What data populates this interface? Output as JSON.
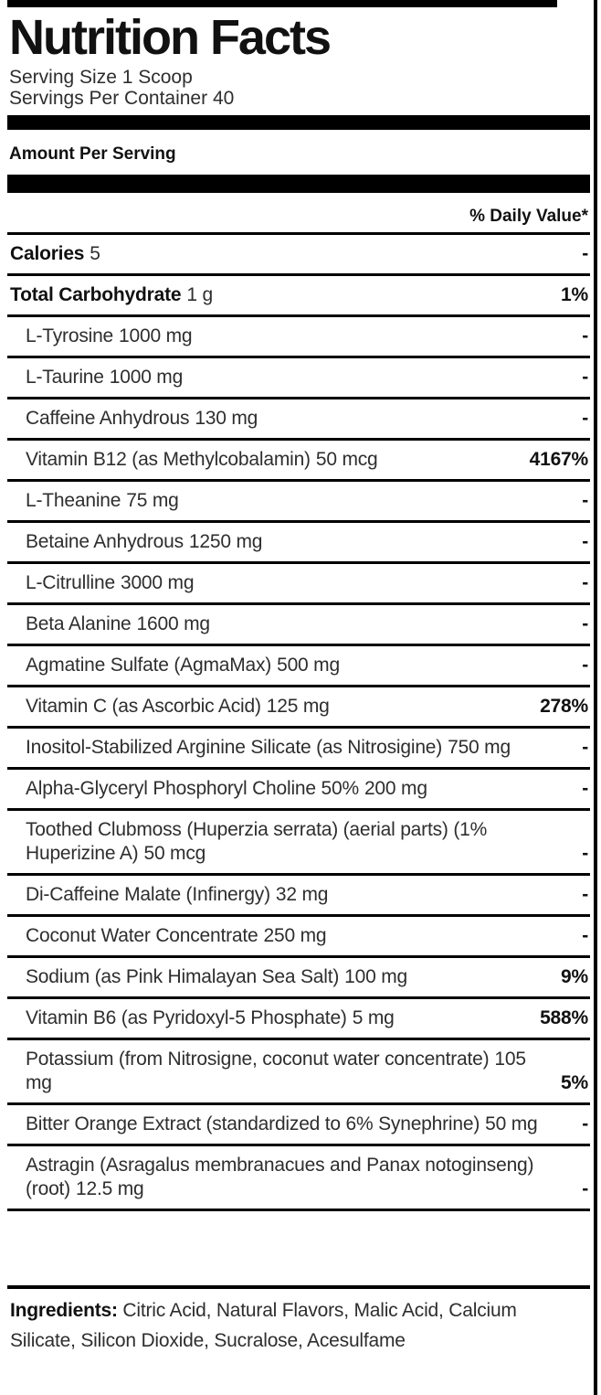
{
  "header": {
    "title": "Nutrition Facts",
    "serving_size": "Serving Size 1 Scoop",
    "servings_per_container": "Servings Per Container 40",
    "amount_per_serving": "Amount Per Serving",
    "daily_value_header": "% Daily Value*"
  },
  "rows": [
    {
      "name": "Calories",
      "amount": "5",
      "dv": "-",
      "bold": true,
      "indent": false
    },
    {
      "name": "Total Carbohydrate",
      "amount": "1 g",
      "dv": "1%",
      "bold": true,
      "indent": false
    },
    {
      "name": "L-Tyrosine",
      "amount": "1000 mg",
      "dv": "-",
      "bold": false,
      "indent": true
    },
    {
      "name": "L-Taurine",
      "amount": "1000 mg",
      "dv": "-",
      "bold": false,
      "indent": true
    },
    {
      "name": "Caffeine Anhydrous",
      "amount": "130 mg",
      "dv": "-",
      "bold": false,
      "indent": true
    },
    {
      "name": "Vitamin B12 (as Methylcobalamin)",
      "amount": "50 mcg",
      "dv": "4167%",
      "bold": false,
      "indent": true
    },
    {
      "name": "L-Theanine",
      "amount": "75 mg",
      "dv": "-",
      "bold": false,
      "indent": true
    },
    {
      "name": "Betaine Anhydrous",
      "amount": "1250 mg",
      "dv": "-",
      "bold": false,
      "indent": true
    },
    {
      "name": "L-Citrulline",
      "amount": "3000 mg",
      "dv": "-",
      "bold": false,
      "indent": true
    },
    {
      "name": "Beta Alanine",
      "amount": "1600 mg",
      "dv": "-",
      "bold": false,
      "indent": true
    },
    {
      "name": "Agmatine Sulfate (AgmaMax)",
      "amount": "500 mg",
      "dv": "-",
      "bold": false,
      "indent": true
    },
    {
      "name": "Vitamin C (as Ascorbic Acid)",
      "amount": "125 mg",
      "dv": "278%",
      "bold": false,
      "indent": true
    },
    {
      "name": "Inositol-Stabilized Arginine Silicate (as Nitrosigine)",
      "amount": "750 mg",
      "dv": "-",
      "bold": false,
      "indent": true
    },
    {
      "name": "Alpha-Glyceryl Phosphoryl Choline 50%",
      "amount": "200 mg",
      "dv": "-",
      "bold": false,
      "indent": true
    },
    {
      "name": "Toothed Clubmoss (Huperzia serrata) (aerial parts) (1% Huperizine A)",
      "amount": "50 mcg",
      "dv": "-",
      "bold": false,
      "indent": true
    },
    {
      "name": "Di-Caffeine Malate (Infinergy)",
      "amount": "32 mg",
      "dv": "-",
      "bold": false,
      "indent": true
    },
    {
      "name": "Coconut Water Concentrate",
      "amount": "250 mg",
      "dv": "-",
      "bold": false,
      "indent": true
    },
    {
      "name": "Sodium (as Pink Himalayan Sea Salt)",
      "amount": "100 mg",
      "dv": "9%",
      "bold": false,
      "indent": true
    },
    {
      "name": "Vitamin B6 (as Pyridoxyl-5 Phosphate)",
      "amount": "5 mg",
      "dv": "588%",
      "bold": false,
      "indent": true
    },
    {
      "name": "Potassium (from Nitrosigne, coconut water concentrate)",
      "amount": "105 mg",
      "dv": "5%",
      "bold": false,
      "indent": true
    },
    {
      "name": "Bitter Orange Extract (standardized to 6% Synephrine)",
      "amount": "50 mg",
      "dv": "-",
      "bold": false,
      "indent": true
    },
    {
      "name": "Astragin (Asragalus membranacues and Panax notoginseng) (root)",
      "amount": "12.5 mg",
      "dv": "-",
      "bold": false,
      "indent": true
    }
  ],
  "footer": {
    "ingredients_label": "Ingredients:",
    "ingredients_text": " Citric Acid, Natural Flavors, Malic Acid, Calcium Silicate, Silicon Dioxide, Sucralose, Acesulfame"
  },
  "colors": {
    "background": "#ffffff",
    "line": "#000000",
    "text": "#2e2e2e",
    "strong": "#111111"
  }
}
